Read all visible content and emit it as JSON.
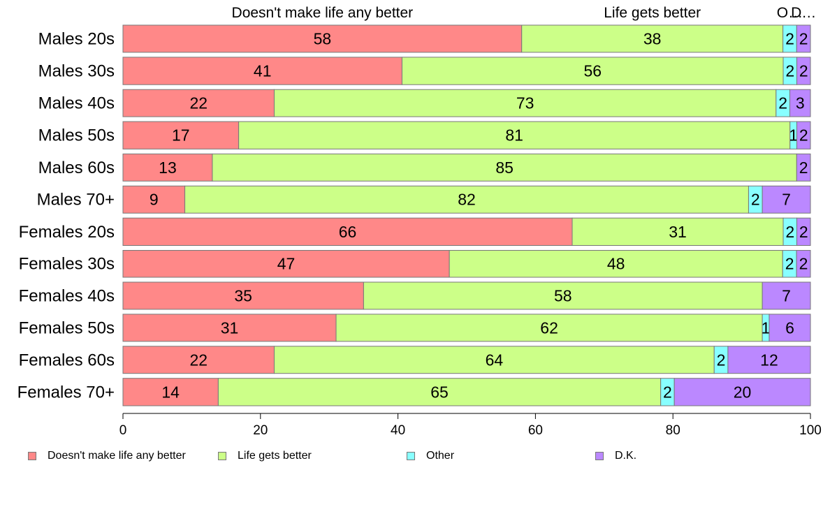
{
  "chart_data": {
    "type": "bar",
    "orientation": "horizontal",
    "stacked": true,
    "categories": [
      "Males 20s",
      "Males 30s",
      "Males 40s",
      "Males 50s",
      "Males 60s",
      "Males 70+",
      "Females 20s",
      "Females 30s",
      "Females 40s",
      "Females 50s",
      "Females 60s",
      "Females 70+"
    ],
    "series": [
      {
        "name": "Doesn't make life any better",
        "color": "#ff8888",
        "values": [
          58,
          41,
          22,
          17,
          13,
          9,
          66,
          47,
          35,
          31,
          22,
          14
        ]
      },
      {
        "name": "Life gets better",
        "color": "#ccff88",
        "values": [
          38,
          56,
          73,
          81,
          85,
          82,
          31,
          48,
          58,
          62,
          64,
          65
        ]
      },
      {
        "name": "Other",
        "color": "#88ffff",
        "values": [
          2,
          2,
          2,
          1,
          0,
          2,
          2,
          2,
          0,
          1,
          2,
          2
        ]
      },
      {
        "name": "D.K.",
        "color": "#bb88ff",
        "values": [
          2,
          2,
          3,
          2,
          2,
          7,
          2,
          2,
          7,
          6,
          12,
          20
        ]
      }
    ],
    "top_labels": [
      "Doesn't make life any better",
      "Life gets better",
      "Other",
      "D.K."
    ],
    "xlim": [
      0,
      100
    ],
    "xticks": [
      "0",
      "20",
      "40",
      "60",
      "80",
      "100"
    ],
    "xlabel": "",
    "ylabel": "",
    "grid": false,
    "legend_position": "bottom"
  }
}
